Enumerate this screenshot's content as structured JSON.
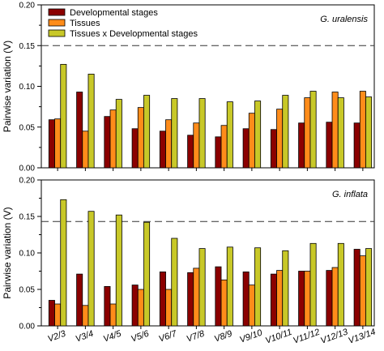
{
  "chart_data": [
    {
      "type": "bar",
      "panel": "top",
      "annotation": "G. uralensis",
      "ylabel": "Pairwise variation (V)",
      "ylim": [
        0,
        0.2
      ],
      "yticks": [
        "0.00",
        "0.05",
        "0.10",
        "0.15",
        "0.20"
      ],
      "threshold": 0.15,
      "legend": "top-left",
      "categories": [
        "V2/3",
        "V3/4",
        "V4/5",
        "V5/6",
        "V6/7",
        "V7/8",
        "V8/9",
        "V9/10",
        "V10/11",
        "V11/12",
        "V12/13",
        "V13/14"
      ],
      "series": [
        {
          "name": "Developmental stages",
          "color": "#8b0000",
          "values": [
            0.059,
            0.093,
            0.063,
            0.048,
            0.045,
            0.04,
            0.038,
            0.048,
            0.047,
            0.055,
            0.056,
            0.055
          ]
        },
        {
          "name": "Tissues",
          "color": "#ff8c1a",
          "values": [
            0.06,
            0.045,
            0.071,
            0.074,
            0.059,
            0.055,
            0.052,
            0.067,
            0.072,
            0.086,
            0.093,
            0.094
          ]
        },
        {
          "name": "Tissues x Developmental stages",
          "color": "#c8c828",
          "values": [
            0.127,
            0.115,
            0.084,
            0.089,
            0.085,
            0.085,
            0.081,
            0.082,
            0.089,
            0.094,
            0.086,
            0.087
          ]
        }
      ]
    },
    {
      "type": "bar",
      "panel": "bottom",
      "annotation": "G. inflata",
      "ylabel": "Pairwise variation (V)",
      "ylim": [
        0,
        0.2
      ],
      "yticks": [
        "0.00",
        "0.05",
        "0.10",
        "0.15",
        "0.20"
      ],
      "threshold": 0.143,
      "categories": [
        "V2/3",
        "V3/4",
        "V4/5",
        "V5/6",
        "V6/7",
        "V7/8",
        "V8/9",
        "V9/10",
        "V10/11",
        "V11/12",
        "V12/13",
        "V13/14"
      ],
      "series": [
        {
          "name": "Developmental stages",
          "color": "#8b0000",
          "values": [
            0.035,
            0.071,
            0.054,
            0.056,
            0.074,
            0.073,
            0.081,
            0.074,
            0.071,
            0.075,
            0.076,
            0.105
          ]
        },
        {
          "name": "Tissues",
          "color": "#ff8c1a",
          "values": [
            0.03,
            0.028,
            0.03,
            0.05,
            0.05,
            0.079,
            0.063,
            0.056,
            0.076,
            0.075,
            0.08,
            0.096
          ]
        },
        {
          "name": "Tissues x Developmental stages",
          "color": "#c8c828",
          "values": [
            0.173,
            0.157,
            0.152,
            0.142,
            0.12,
            0.106,
            0.108,
            0.107,
            0.103,
            0.113,
            0.113,
            0.106
          ]
        }
      ]
    }
  ]
}
